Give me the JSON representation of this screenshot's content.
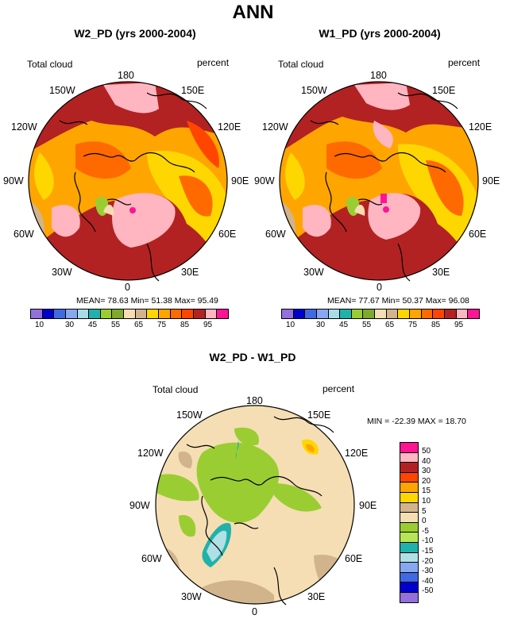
{
  "figure": {
    "title": "ANN"
  },
  "panels": [
    {
      "title": "W2_PD (yrs 2000-2004)",
      "left_label": "Total cloud",
      "right_label": "percent",
      "stats": "MEAN= 78.63  Min= 51.38  Max= 95.49"
    },
    {
      "title": "W1_PD (yrs 2000-2004)",
      "left_label": "Total cloud",
      "right_label": "percent",
      "stats": "MEAN= 77.67  Min= 50.37  Max= 96.08"
    },
    {
      "title": "W2_PD - W1_PD",
      "left_label": "Total cloud",
      "right_label": "percent",
      "stats": "MIN = -22.39 MAX =  18.70"
    }
  ],
  "longitude_labels": {
    "l180": "180",
    "l150e": "150E",
    "l120e": "120E",
    "l90e": "90E",
    "l60e": "60E",
    "l30e": "30E",
    "l0": "0",
    "l30w": "30W",
    "l60w": "60W",
    "l90w": "90W",
    "l120w": "120W",
    "l150w": "150W"
  },
  "colorbar_top": {
    "colors": [
      "#9370db",
      "#0000cd",
      "#4169e1",
      "#87a8f0",
      "#a8dde8",
      "#20b2aa",
      "#9acd32",
      "#7fa82e",
      "#f5deb3",
      "#d2b48c",
      "#ffd700",
      "#ffa500",
      "#ff6a00",
      "#ff4500",
      "#b22222",
      "#ffb6c1",
      "#ff1493"
    ],
    "ticks": [
      "10",
      "30",
      "45",
      "55",
      "65",
      "75",
      "85",
      "95"
    ]
  },
  "colorbar_diff": {
    "colors": [
      "#ff1493",
      "#ffb6c1",
      "#b22222",
      "#ff4500",
      "#ffa500",
      "#ffd700",
      "#d2b48c",
      "#f5deb3",
      "#9acd32",
      "#b5e655",
      "#20b2aa",
      "#b0e0e6",
      "#87a8f0",
      "#4169e1",
      "#0000cd",
      "#9370db"
    ],
    "ticks": [
      "50",
      "40",
      "30",
      "20",
      "15",
      "10",
      "5",
      "0",
      "-5",
      "-10",
      "-15",
      "-20",
      "-30",
      "-40",
      "-50"
    ]
  }
}
